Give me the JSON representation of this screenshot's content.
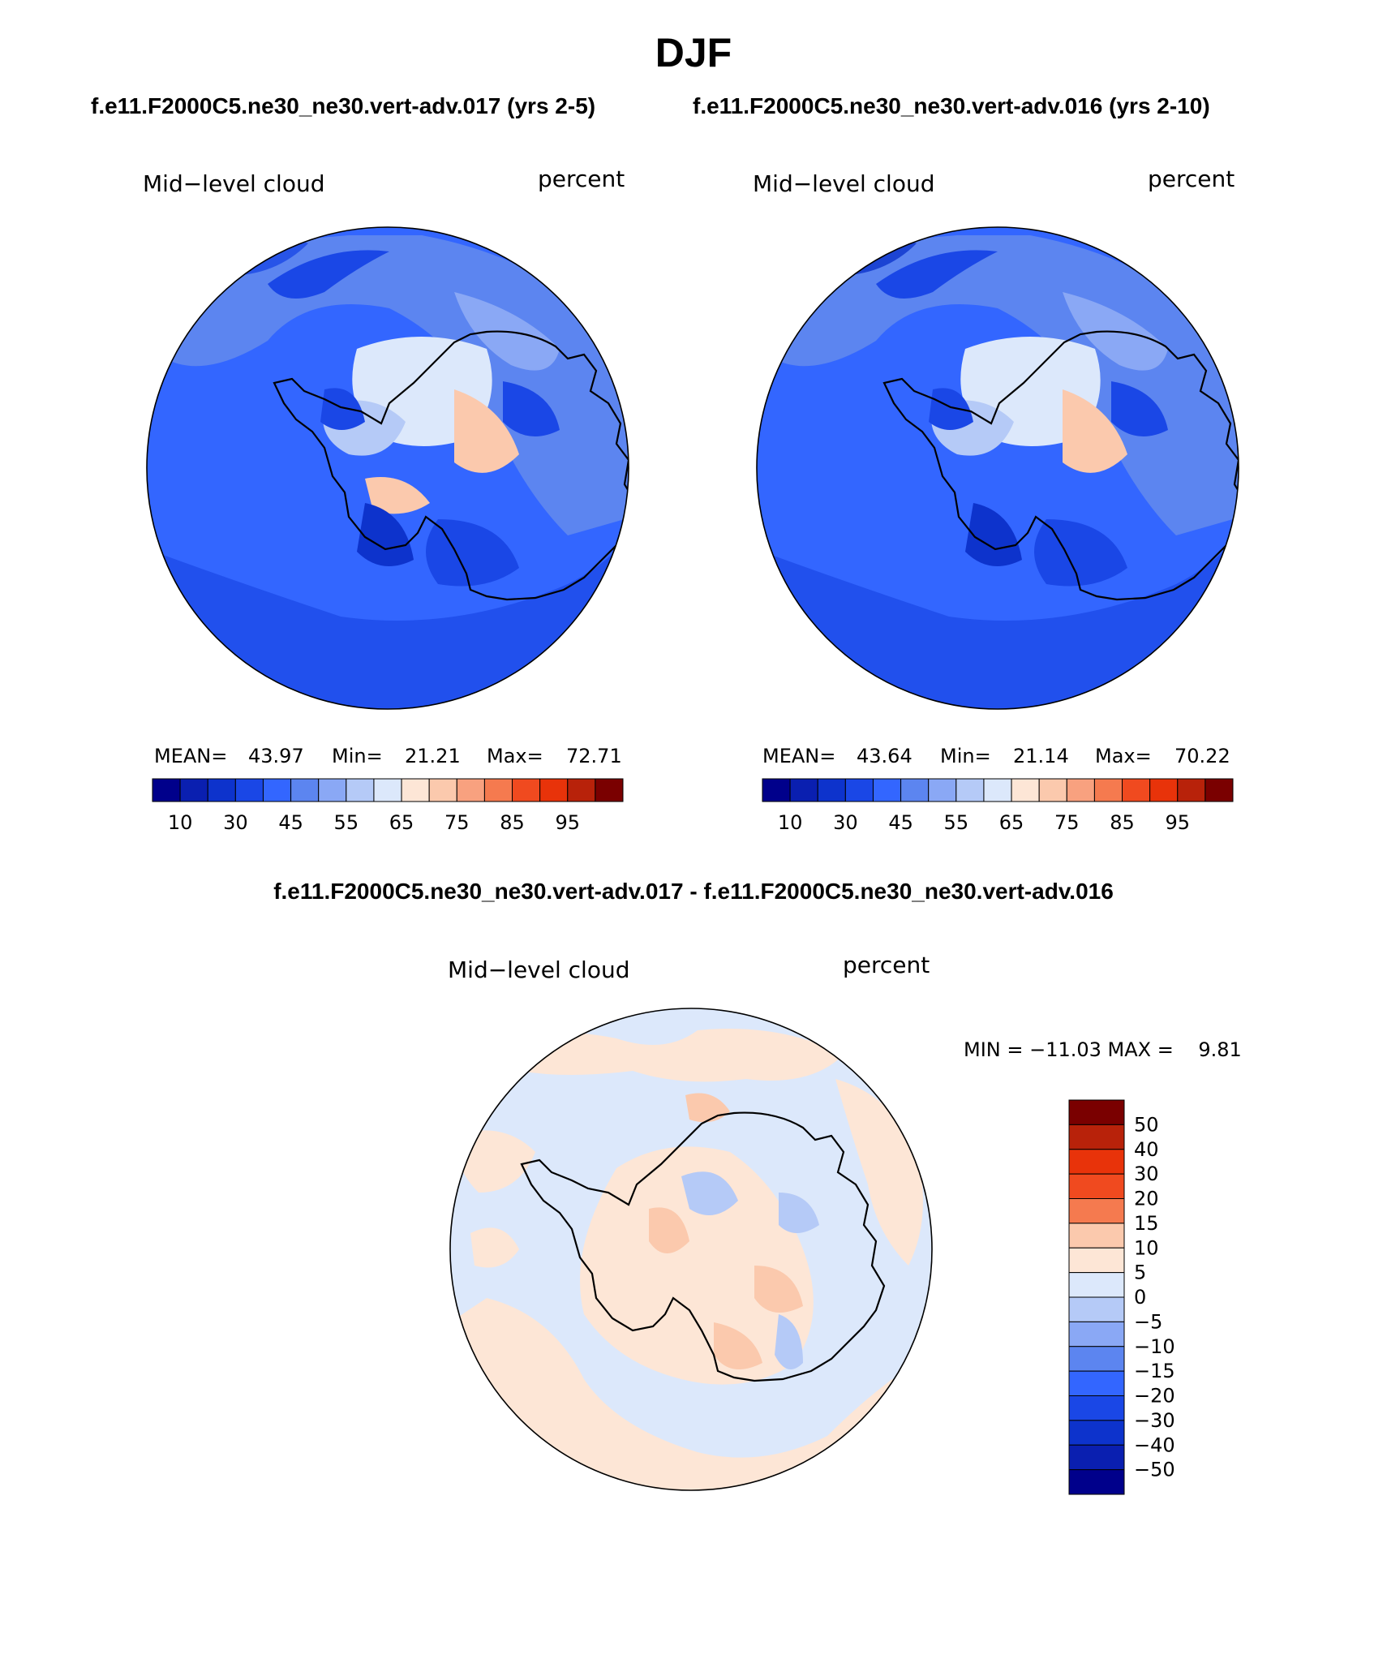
{
  "title": "DJF",
  "case_titles": {
    "left": "f.e11.F2000C5.ne30_ne30.vert-adv.017 (yrs 2-5)",
    "right": "f.e11.F2000C5.ne30_ne30.vert-adv.016 (yrs 2-10)"
  },
  "diff_title": "f.e11.F2000C5.ne30_ne30.vert-adv.017 - f.e11.F2000C5.ne30_ne30.vert-adv.016",
  "panels": {
    "left": {
      "variable": "Mid−level cloud",
      "units": "percent",
      "mean_label": "MEAN=",
      "mean": "43.97",
      "min_label": "Min=",
      "min": "21.21",
      "max_label": "Max=",
      "max": "72.71"
    },
    "right": {
      "variable": "Mid−level cloud",
      "units": "percent",
      "mean_label": "MEAN=",
      "mean": "43.64",
      "min_label": "Min=",
      "min": "21.14",
      "max_label": "Max=",
      "max": "70.22"
    },
    "diff": {
      "variable": "Mid−level cloud",
      "units": "percent",
      "minmax": "MIN = −11.03 MAX =    9.81"
    }
  },
  "colorbar": {
    "colors": [
      "#00008b",
      "#0a1fb0",
      "#0d33cc",
      "#1a47e6",
      "#3366ff",
      "#5c85f0",
      "#8aa8f5",
      "#b5caf7",
      "#dce8fb",
      "#fde6d6",
      "#fbc9ad",
      "#f8a17f",
      "#f57a4f",
      "#f04a1f",
      "#e8330a",
      "#b8220a",
      "#7a0000"
    ],
    "tick_labels": [
      "10",
      "30",
      "45",
      "55",
      "65",
      "75",
      "85",
      "95"
    ]
  },
  "diff_colorbar": {
    "colors": [
      "#7a0000",
      "#b8220a",
      "#e8330a",
      "#f04a1f",
      "#f57a4f",
      "#fbc9ad",
      "#fde6d6",
      "#dce8fb",
      "#b5caf7",
      "#8aa8f5",
      "#5c85f0",
      "#3366ff",
      "#1a47e6",
      "#0d33cc",
      "#0a1fb0",
      "#00008b"
    ],
    "tick_labels": [
      "50",
      "40",
      "30",
      "20",
      "15",
      "10",
      "5",
      "0",
      "−5",
      "−10",
      "−15",
      "−20",
      "−30",
      "−40",
      "−50"
    ]
  }
}
